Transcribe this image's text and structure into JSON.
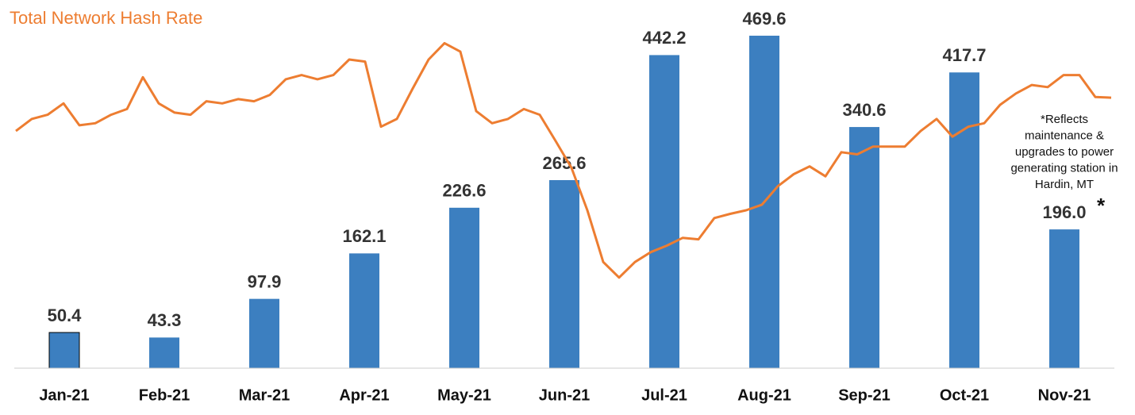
{
  "chart_data": [
    {
      "type": "bar",
      "categories": [
        "Jan-21",
        "Feb-21",
        "Mar-21",
        "Apr-21",
        "May-21",
        "Jun-21",
        "Jul-21",
        "Aug-21",
        "Sep-21",
        "Oct-21",
        "Nov-21"
      ],
      "values": [
        50.4,
        43.3,
        97.9,
        162.1,
        226.6,
        265.6,
        442.2,
        469.6,
        340.6,
        417.7,
        196.0
      ],
      "value_labels": [
        "50.4",
        "43.3",
        "97.9",
        "162.1",
        "226.6",
        "265.6",
        "442.2",
        "469.6",
        "340.6",
        "417.7",
        "196.0"
      ],
      "color": "#3c7fc0",
      "ylim": [
        0,
        520
      ],
      "annotation": [
        "*Reflects",
        "maintenance &",
        "upgrades to power",
        "generating station in",
        "Hardin, MT"
      ],
      "annotation_marker": "*"
    },
    {
      "type": "line",
      "title": "Total Network Hash Rate",
      "color": "#ed7d31",
      "ylim": [
        0,
        520
      ],
      "values": [
        335,
        352,
        358,
        374,
        343,
        346,
        358,
        366,
        411,
        374,
        361,
        358,
        377,
        374,
        380,
        377,
        386,
        408,
        414,
        408,
        414,
        436,
        433,
        341,
        352,
        395,
        436,
        459,
        447,
        363,
        346,
        352,
        366,
        358,
        321,
        283,
        223,
        150,
        128,
        150,
        164,
        173,
        184,
        182,
        212,
        218,
        223,
        231,
        257,
        274,
        285,
        271,
        305,
        302,
        313,
        313,
        313,
        335,
        352,
        327,
        341,
        346,
        372,
        388,
        400,
        397,
        414,
        414,
        383,
        382
      ]
    }
  ]
}
